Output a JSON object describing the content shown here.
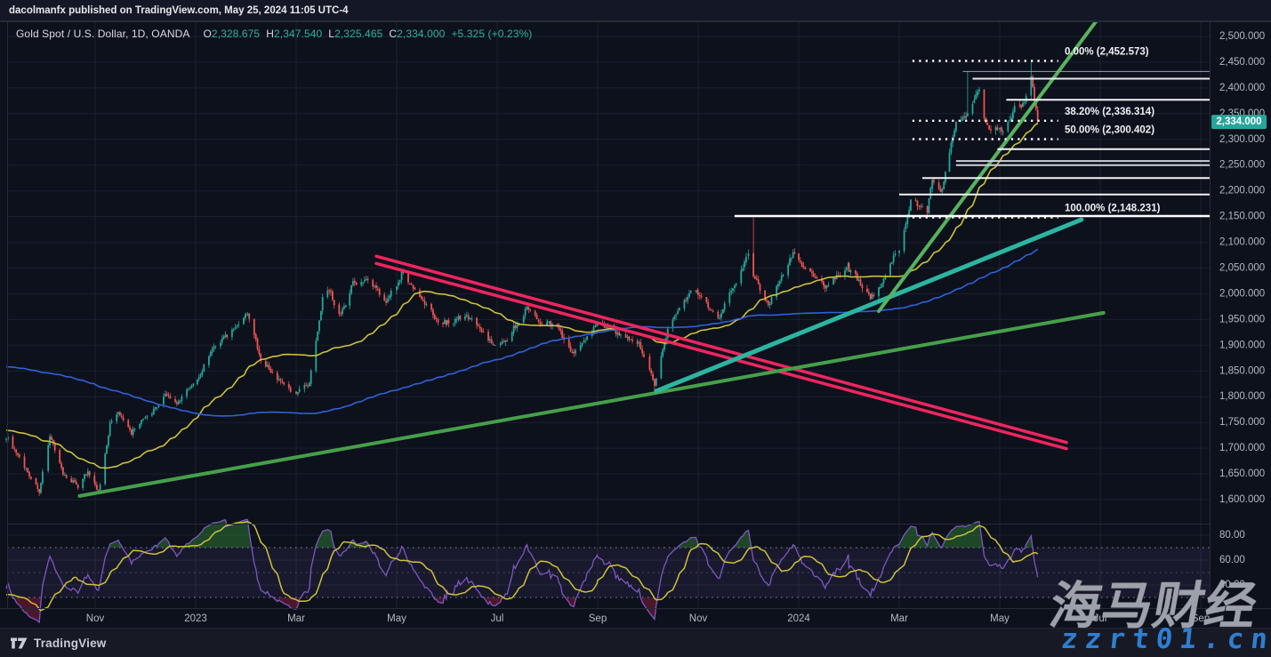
{
  "topbar": {
    "text": "dacolmanfx published on TradingView.com, May 25, 2024 11:05 UTC-4"
  },
  "legend": {
    "symbol": "Gold Spot / U.S. Dollar, 1D, OANDA",
    "items": [
      {
        "label": "O",
        "value": "2,328.675"
      },
      {
        "label": "H",
        "value": "2,347.540"
      },
      {
        "label": "L",
        "value": "2,325.465"
      },
      {
        "label": "C",
        "value": "2,334.000"
      }
    ],
    "change": "+5.325 (+0.23%)"
  },
  "price_badge": "2,334.000",
  "footer": {
    "brand": "TradingView"
  },
  "watermark": {
    "cjk": "海马财经",
    "domain": "zzrt01.cn"
  },
  "colors": {
    "bg": "#0d111c",
    "grid": "#1c2130",
    "border": "#262b38",
    "axis_text": "#b4b8c1",
    "up": "#26a69a",
    "down": "#ef5350",
    "badge": "#26a69a",
    "sma_fast": "#cdc13b",
    "sma_slow": "#2f62d9",
    "rsi": "#7e57c2",
    "rsi_ma": "#cdc13b",
    "rsi_band": "rgba(126,87,194,0.11)",
    "rsi_over": "rgba(46,125,50,0.5)",
    "rsi_under": "rgba(150,30,60,0.45)",
    "trend_pink": "#f0255e",
    "trend_green": "#45a049",
    "trend_green2": "#56b35f",
    "trend_teal": "#2cb5a0",
    "fib": "#ffffff",
    "label_text": "#eef0f3"
  },
  "chart_data": {
    "type": "candlestick+rsi",
    "title": "Gold Spot / U.S. Dollar",
    "interval": "1D",
    "exchange": "OANDA",
    "ohlc_readout": {
      "open": 2328.675,
      "high": 2347.54,
      "low": 2325.465,
      "close": 2334.0,
      "change": 0.23
    },
    "yaxis": {
      "max": 2500,
      "min": 1600,
      "step": 50,
      "decimals": 3
    },
    "time_axis_labels": [
      {
        "text": "Nov",
        "m": 0
      },
      {
        "text": "2023",
        "m": 2
      },
      {
        "text": "Mar",
        "m": 4
      },
      {
        "text": "May",
        "m": 6
      },
      {
        "text": "Jul",
        "m": 8
      },
      {
        "text": "Sep",
        "m": 10
      },
      {
        "text": "Nov",
        "m": 12
      },
      {
        "text": "2024",
        "m": 14
      },
      {
        "text": "Mar",
        "m": 16
      },
      {
        "text": "May",
        "m": 18
      },
      {
        "text": "Jul",
        "m": 20
      },
      {
        "text": "Sep",
        "m": 22
      }
    ],
    "history_start": "2021-11-01",
    "visible_start": "2022-09-08",
    "last_date": "2024-05-24",
    "price_anchors": [
      [
        "2021-11-01",
        1793
      ],
      [
        "2021-11-16",
        1850
      ],
      [
        "2021-12-15",
        1772
      ],
      [
        "2022-01-25",
        1848
      ],
      [
        "2022-03-08",
        2043
      ],
      [
        "2022-04-18",
        1977
      ],
      [
        "2022-05-16",
        1811
      ],
      [
        "2022-06-10",
        1871
      ],
      [
        "2022-07-21",
        1690
      ],
      [
        "2022-08-10",
        1789
      ],
      [
        "2022-08-31",
        1712
      ],
      [
        "2022-09-09",
        1716
      ],
      [
        "2022-09-16",
        1675
      ],
      [
        "2022-09-28",
        1615
      ],
      [
        "2022-10-04",
        1726
      ],
      [
        "2022-10-14",
        1645
      ],
      [
        "2022-10-21",
        1628
      ],
      [
        "2022-10-27",
        1663
      ],
      [
        "2022-11-03",
        1616
      ],
      [
        "2022-11-10",
        1755
      ],
      [
        "2022-11-15",
        1778
      ],
      [
        "2022-11-23",
        1740
      ],
      [
        "2022-12-05",
        1768
      ],
      [
        "2022-12-13",
        1811
      ],
      [
        "2022-12-20",
        1790
      ],
      [
        "2023-01-03",
        1840
      ],
      [
        "2023-01-13",
        1895
      ],
      [
        "2023-01-26",
        1930
      ],
      [
        "2023-02-02",
        1955
      ],
      [
        "2023-02-10",
        1862
      ],
      [
        "2023-02-28",
        1811
      ],
      [
        "2023-03-09",
        1830
      ],
      [
        "2023-03-17",
        1989
      ],
      [
        "2023-03-20",
        2010
      ],
      [
        "2023-03-27",
        1957
      ],
      [
        "2023-04-05",
        2021
      ],
      [
        "2023-04-13",
        2040
      ],
      [
        "2023-04-25",
        1997
      ],
      [
        "2023-05-04",
        2050
      ],
      [
        "2023-05-12",
        2011
      ],
      [
        "2023-05-26",
        1946
      ],
      [
        "2023-06-02",
        1948
      ],
      [
        "2023-06-16",
        1958
      ],
      [
        "2023-06-29",
        1908
      ],
      [
        "2023-07-06",
        1911
      ],
      [
        "2023-07-19",
        1977
      ],
      [
        "2023-07-27",
        1945
      ],
      [
        "2023-08-07",
        1936
      ],
      [
        "2023-08-17",
        1889
      ],
      [
        "2023-08-30",
        1942
      ],
      [
        "2023-09-15",
        1924
      ],
      [
        "2023-09-26",
        1900
      ],
      [
        "2023-10-05",
        1820
      ],
      [
        "2023-10-13",
        1932
      ],
      [
        "2023-10-27",
        2006
      ],
      [
        "2023-11-03",
        1992
      ],
      [
        "2023-11-13",
        1946
      ],
      [
        "2023-11-21",
        1999
      ],
      [
        "2023-12-01",
        2072
      ],
      [
        "2023-12-04",
        2030
      ],
      [
        "2023-12-13",
        1979
      ],
      [
        "2023-12-28",
        2077
      ],
      [
        "2024-01-05",
        2045
      ],
      [
        "2024-01-17",
        2006
      ],
      [
        "2024-01-31",
        2040
      ],
      [
        "2024-02-14",
        1992
      ],
      [
        "2024-02-23",
        2035
      ],
      [
        "2024-03-01",
        2083
      ],
      [
        "2024-03-08",
        2178
      ],
      [
        "2024-03-18",
        2160
      ],
      [
        "2024-03-21",
        2222
      ],
      [
        "2024-03-27",
        2195
      ],
      [
        "2024-04-05",
        2330
      ],
      [
        "2024-04-12",
        2344
      ],
      [
        "2024-04-16",
        2383
      ],
      [
        "2024-04-19",
        2392
      ],
      [
        "2024-04-23",
        2322
      ],
      [
        "2024-05-02",
        2303
      ],
      [
        "2024-05-10",
        2360
      ],
      [
        "2024-05-16",
        2376
      ],
      [
        "2024-05-20",
        2425
      ],
      [
        "2024-05-22",
        2378
      ],
      [
        "2024-05-24",
        2334
      ]
    ],
    "wick_spikes": [
      {
        "date": "2022-09-28",
        "low": 1615
      },
      {
        "date": "2023-10-05",
        "low": 1811
      },
      {
        "date": "2023-12-04",
        "high": 2148
      },
      {
        "date": "2024-04-12",
        "high": 2431
      },
      {
        "date": "2024-05-20",
        "high": 2450
      }
    ],
    "overlays": [
      {
        "name": "sma-fast",
        "window": 45,
        "color_key": "sma_fast"
      },
      {
        "name": "sma-slow",
        "window": 190,
        "color_key": "sma_slow"
      }
    ],
    "fib": {
      "start": "2024-03-09",
      "end": "2024-06-06",
      "levels": [
        {
          "pct": "0.00%",
          "value": 2452.573,
          "label": "0.00% (2,452.573)"
        },
        {
          "pct": "38.20%",
          "value": 2336.314,
          "label": "38.20% (2,336.314)"
        },
        {
          "pct": "50.00%",
          "value": 2300.402,
          "label": "50.00% (2,300.402)"
        },
        {
          "pct": "100.00%",
          "value": 2148.231,
          "label": "100.00% (2,148.231)"
        }
      ]
    },
    "h_lines": [
      {
        "price": 2432,
        "from": "2024-04-09",
        "color": "#9aa0ab",
        "w": 1
      },
      {
        "price": 2418,
        "from": "2024-04-15",
        "color": "#e9ebee",
        "w": 2
      },
      {
        "price": 2377,
        "from": "2024-05-05",
        "color": "#f2f3f5",
        "w": 2
      },
      {
        "price": 2281,
        "from": "2024-04-30",
        "color": "#f2f3f5",
        "w": 2
      },
      {
        "price": 2258,
        "from": "2024-04-05",
        "color": "#ccd0d9",
        "w": 2
      },
      {
        "price": 2250,
        "from": "2024-04-05",
        "color": "#ccd0d9",
        "w": 2
      },
      {
        "price": 2225,
        "from": "2024-03-15",
        "color": "#f2f3f5",
        "w": 2
      },
      {
        "price": 2193,
        "from": "2024-03-01",
        "color": "#f2f3f5",
        "w": 2
      },
      {
        "price": 2151,
        "from": "2023-11-23",
        "color": "#ffffff",
        "w": 2.5
      }
    ],
    "trend_lines": [
      {
        "name": "descending-channel-upper",
        "from": [
          "2023-04-19",
          2073
        ],
        "to": [
          "2024-06-11",
          1711
        ],
        "color_key": "trend_pink",
        "w": 3.5
      },
      {
        "name": "descending-channel-lower",
        "from": [
          "2023-04-19",
          2059
        ],
        "to": [
          "2024-06-11",
          1699
        ],
        "color_key": "trend_pink",
        "w": 3.5
      },
      {
        "name": "long-term-uptrend",
        "from": [
          "2022-10-22",
          1607
        ],
        "to": [
          "2024-07-03",
          1963
        ],
        "color_key": "trend_green",
        "w": 4
      },
      {
        "name": "medium-uptrend",
        "from": [
          "2023-10-06",
          1811
        ],
        "to": [
          "2024-06-20",
          2144
        ],
        "color_key": "trend_teal",
        "w": 5
      },
      {
        "name": "steep-uptrend",
        "from": [
          "2024-02-19",
          1966
        ],
        "to": [
          "2024-07-04",
          2553
        ],
        "color_key": "trend_green2",
        "w": 4
      }
    ],
    "rsi": {
      "period": 14,
      "ma_window": 14,
      "upper": 70,
      "lower": 30,
      "mid": 50,
      "axis_ticks": [
        80,
        60,
        40
      ]
    }
  }
}
